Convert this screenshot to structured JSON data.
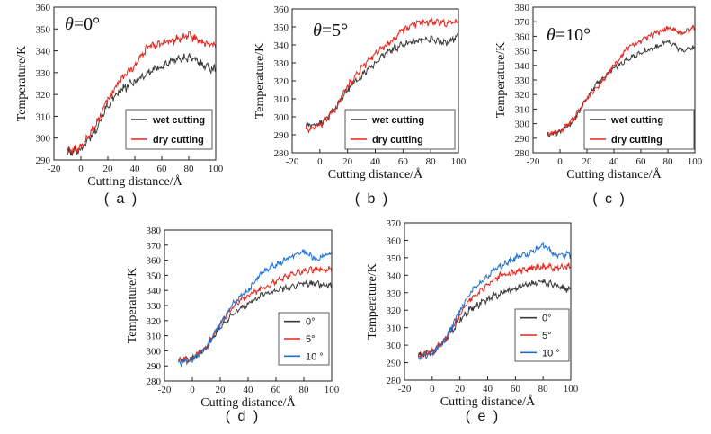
{
  "chart_data": [
    {
      "type": "line",
      "panel_label": "( a )",
      "annotation": {
        "symbol": "θ",
        "value": "=0°"
      },
      "xlabel": "Cutting distance/Å",
      "ylabel": "Temperature/K",
      "xlim": [
        -20,
        100
      ],
      "ylim": [
        290,
        360
      ],
      "xticks": [
        "-20",
        "0",
        "20",
        "40",
        "60",
        "80",
        "100"
      ],
      "yticks": [
        "290",
        "300",
        "310",
        "320",
        "330",
        "340",
        "350",
        "360"
      ],
      "legend_position": "bottom-right",
      "series": [
        {
          "name": "wet cutting",
          "color": "#3a3a3a",
          "x": [
            -10,
            0,
            10,
            20,
            30,
            40,
            50,
            60,
            70,
            80,
            90,
            100
          ],
          "y": [
            293,
            295,
            303,
            315,
            322,
            326,
            330,
            333,
            336,
            337,
            334,
            331
          ]
        },
        {
          "name": "dry cutting",
          "color": "#e8231c",
          "x": [
            -10,
            0,
            10,
            20,
            30,
            40,
            50,
            60,
            70,
            80,
            90,
            100
          ],
          "y": [
            294,
            296,
            305,
            318,
            327,
            333,
            342,
            343,
            345,
            347,
            344,
            342
          ]
        }
      ]
    },
    {
      "type": "line",
      "panel_label": "( b )",
      "annotation": {
        "symbol": "θ",
        "value": "=5°"
      },
      "xlabel": "Cutting distance/Å",
      "ylabel": "Temperature/K",
      "xlim": [
        -20,
        100
      ],
      "ylim": [
        280,
        360
      ],
      "xticks": [
        "-20",
        "0",
        "20",
        "40",
        "60",
        "80",
        "100"
      ],
      "yticks": [
        "280",
        "290",
        "300",
        "310",
        "320",
        "330",
        "340",
        "350",
        "360"
      ],
      "legend_position": "bottom-right",
      "series": [
        {
          "name": "wet cutting",
          "color": "#3a3a3a",
          "x": [
            -10,
            0,
            10,
            20,
            30,
            40,
            50,
            60,
            70,
            80,
            90,
            100
          ],
          "y": [
            295,
            296,
            303,
            315,
            323,
            330,
            337,
            340,
            342,
            343,
            341,
            345
          ]
        },
        {
          "name": "dry cutting",
          "color": "#e8231c",
          "x": [
            -10,
            0,
            10,
            20,
            30,
            40,
            50,
            60,
            70,
            80,
            90,
            100
          ],
          "y": [
            293,
            295,
            303,
            317,
            327,
            335,
            341,
            348,
            352,
            353,
            352,
            353
          ]
        }
      ]
    },
    {
      "type": "line",
      "panel_label": "( c )",
      "annotation": {
        "symbol": "θ",
        "value": "=10°"
      },
      "xlabel": "Cutting distance/Å",
      "ylabel": "Temperature/K",
      "xlim": [
        -20,
        100
      ],
      "ylim": [
        280,
        380
      ],
      "xticks": [
        "-20",
        "0",
        "20",
        "40",
        "60",
        "80",
        "100"
      ],
      "yticks": [
        "280",
        "290",
        "300",
        "310",
        "320",
        "330",
        "340",
        "350",
        "360",
        "370",
        "380"
      ],
      "legend_position": "bottom-right",
      "series": [
        {
          "name": "wet cutting",
          "color": "#3a3a3a",
          "x": [
            -10,
            0,
            10,
            20,
            30,
            40,
            50,
            60,
            70,
            80,
            90,
            100
          ],
          "y": [
            292,
            294,
            302,
            318,
            330,
            338,
            344,
            349,
            352,
            357,
            350,
            352
          ]
        },
        {
          "name": "dry cutting",
          "color": "#e8231c",
          "x": [
            -10,
            0,
            10,
            20,
            30,
            40,
            50,
            60,
            70,
            80,
            90,
            100
          ],
          "y": [
            293,
            295,
            303,
            317,
            328,
            340,
            352,
            357,
            362,
            366,
            362,
            366
          ]
        }
      ]
    },
    {
      "type": "line",
      "panel_label": "( d )",
      "xlabel": "Cutting distance/Å",
      "ylabel": "Temperature/K",
      "xlim": [
        -20,
        100
      ],
      "ylim": [
        280,
        380
      ],
      "xticks": [
        "-20",
        "0",
        "20",
        "40",
        "60",
        "80",
        "100"
      ],
      "yticks": [
        "280",
        "290",
        "300",
        "310",
        "320",
        "330",
        "340",
        "350",
        "360",
        "370",
        "380"
      ],
      "legend_position": "bottom-right",
      "series": [
        {
          "name": "0°",
          "color": "#3a3a3a",
          "x": [
            -10,
            0,
            10,
            20,
            30,
            40,
            50,
            60,
            70,
            80,
            90,
            100
          ],
          "y": [
            293,
            295,
            302,
            316,
            325,
            331,
            337,
            340,
            342,
            345,
            344,
            343
          ]
        },
        {
          "name": "5°",
          "color": "#e8231c",
          "x": [
            -10,
            0,
            10,
            20,
            30,
            40,
            50,
            60,
            70,
            80,
            90,
            100
          ],
          "y": [
            293,
            295,
            303,
            318,
            330,
            337,
            341,
            346,
            350,
            353,
            354,
            354
          ]
        },
        {
          "name": "10 °",
          "color": "#1f6fd1",
          "x": [
            -10,
            0,
            10,
            20,
            30,
            40,
            50,
            60,
            70,
            80,
            90,
            100
          ],
          "y": [
            292,
            294,
            302,
            318,
            332,
            340,
            352,
            357,
            362,
            366,
            360,
            366
          ]
        }
      ]
    },
    {
      "type": "line",
      "panel_label": "( e )",
      "xlabel": "Cutting distance/Å",
      "ylabel": "Temperature/K",
      "xlim": [
        -20,
        100
      ],
      "ylim": [
        280,
        370
      ],
      "xticks": [
        "-20",
        "0",
        "20",
        "40",
        "60",
        "80",
        "100"
      ],
      "yticks": [
        "280",
        "290",
        "300",
        "310",
        "320",
        "330",
        "340",
        "350",
        "360",
        "370"
      ],
      "legend_position": "bottom-right",
      "series": [
        {
          "name": "0°",
          "color": "#3a3a3a",
          "x": [
            -10,
            0,
            10,
            20,
            30,
            40,
            50,
            60,
            70,
            80,
            90,
            100
          ],
          "y": [
            294,
            296,
            303,
            315,
            322,
            326,
            330,
            333,
            335,
            336,
            334,
            331
          ]
        },
        {
          "name": "5°",
          "color": "#e8231c",
          "x": [
            -10,
            0,
            10,
            20,
            30,
            40,
            50,
            60,
            70,
            80,
            90,
            100
          ],
          "y": [
            294,
            296,
            304,
            318,
            328,
            335,
            340,
            342,
            344,
            345,
            344,
            345
          ]
        },
        {
          "name": "10 °",
          "color": "#1f6fd1",
          "x": [
            -10,
            0,
            10,
            20,
            30,
            40,
            50,
            60,
            70,
            80,
            90,
            100
          ],
          "y": [
            293,
            295,
            304,
            320,
            333,
            340,
            346,
            350,
            352,
            357,
            351,
            352
          ]
        }
      ]
    }
  ]
}
